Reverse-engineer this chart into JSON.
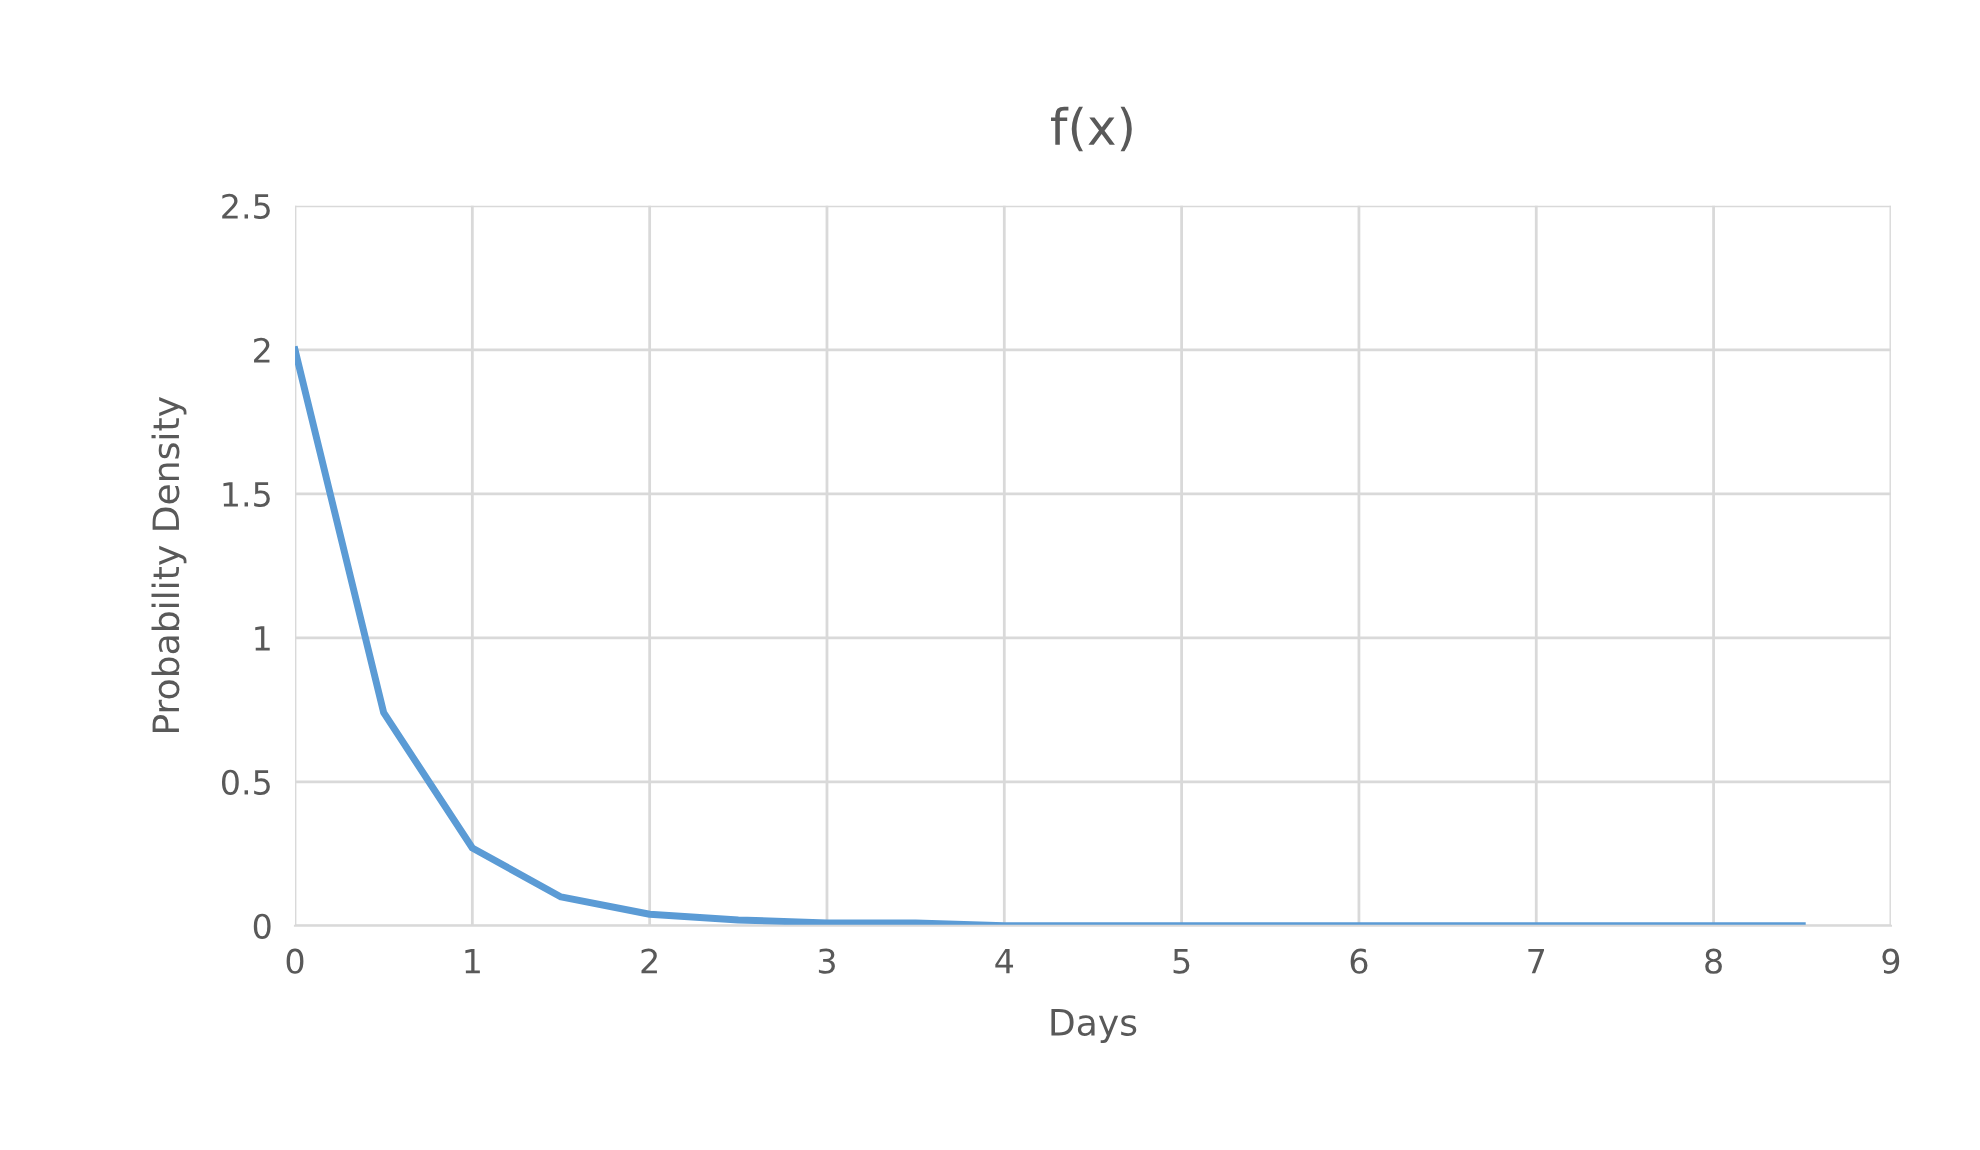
{
  "chart_data": {
    "type": "line",
    "title": "f(x)",
    "xlabel": "Days",
    "ylabel": "Probability Density",
    "x": [
      0,
      0.5,
      1,
      1.5,
      2,
      2.5,
      3,
      3.5,
      4,
      4.5,
      5,
      5.5,
      6,
      6.5,
      7,
      7.5,
      8,
      8.5
    ],
    "series": [
      {
        "color": "#5b9bd5",
        "values": [
          2,
          0.74,
          0.27,
          0.1,
          0.04,
          0.02,
          0.01,
          0.01,
          0,
          0,
          0,
          0,
          0,
          0,
          0,
          0,
          0,
          0
        ]
      }
    ],
    "xlim": [
      0,
      9
    ],
    "xticks": [
      0,
      1,
      2,
      3,
      4,
      5,
      6,
      7,
      8,
      9
    ],
    "ylim": [
      0,
      2.5
    ],
    "yticks": [
      0,
      0.5,
      1,
      1.5,
      2,
      2.5
    ],
    "grid": true,
    "legend": false,
    "marker": "none",
    "line_style": "solid"
  }
}
